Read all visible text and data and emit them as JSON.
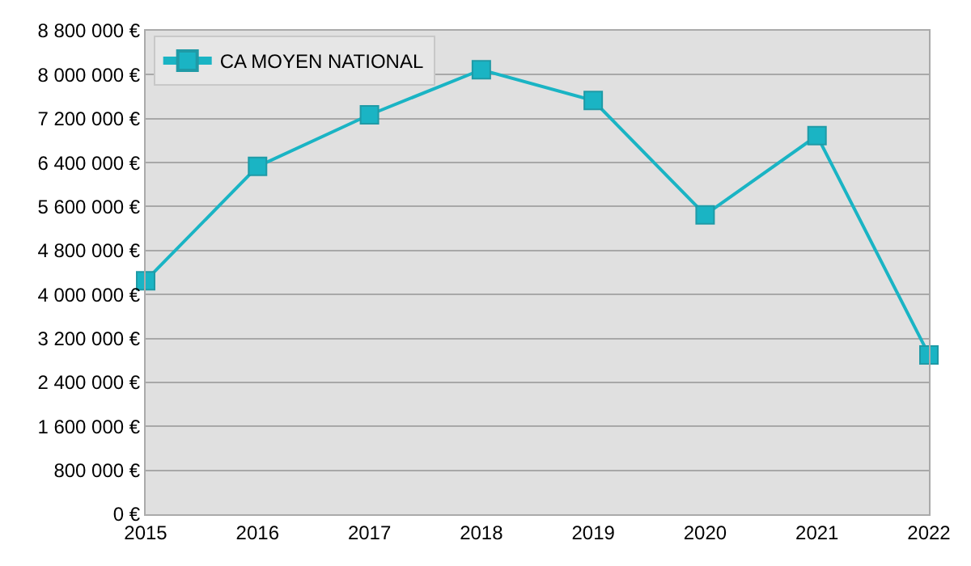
{
  "chart_data": {
    "type": "line",
    "x": [
      2015,
      2016,
      2017,
      2018,
      2019,
      2020,
      2021,
      2022
    ],
    "series": [
      {
        "name": "CA MOYEN NATIONAL",
        "color": "#1ab4c4",
        "values": [
          4250000,
          6330000,
          7270000,
          8090000,
          7530000,
          5450000,
          6890000,
          2900000
        ]
      }
    ],
    "xlim": [
      2015,
      2022
    ],
    "xticks": [
      2015,
      2016,
      2017,
      2018,
      2019,
      2020,
      2021,
      2022
    ],
    "ylim": [
      0,
      8800000
    ],
    "yticks": [
      {
        "value": 0,
        "label": "0 €"
      },
      {
        "value": 800000,
        "label": "800 000 €"
      },
      {
        "value": 1600000,
        "label": "1 600 000 €"
      },
      {
        "value": 2400000,
        "label": "2 400 000 €"
      },
      {
        "value": 3200000,
        "label": "3 200 000 €"
      },
      {
        "value": 4000000,
        "label": "4 000 000 €"
      },
      {
        "value": 4800000,
        "label": "4 800 000 €"
      },
      {
        "value": 5600000,
        "label": "5 600 000 €"
      },
      {
        "value": 6400000,
        "label": "6 400 000 €"
      },
      {
        "value": 7200000,
        "label": "7 200 000 €"
      },
      {
        "value": 8000000,
        "label": "8 000 000 €"
      },
      {
        "value": 8800000,
        "label": "8 800 000 €"
      }
    ],
    "grid": "y",
    "legend": "top left",
    "marker": "square",
    "line_style": "solid"
  }
}
